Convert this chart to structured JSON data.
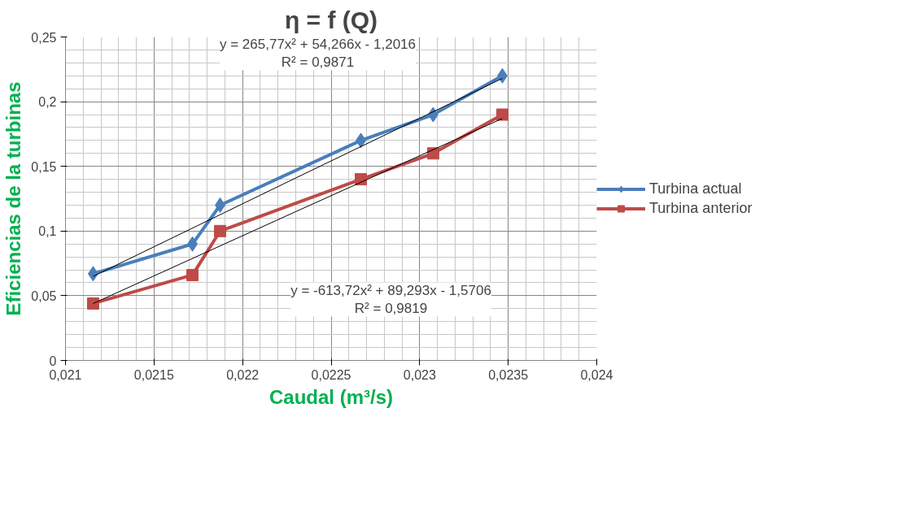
{
  "chart_data": {
    "type": "line",
    "title": "η = f (Q)",
    "xlabel": "Caudal (m³/s)",
    "ylabel": "Eficiencias de la turbinas",
    "x": [
      0.021156,
      0.021717,
      0.021873,
      0.022668,
      0.023076,
      0.023467
    ],
    "series": [
      {
        "name": "Turbina actual",
        "color": "#4a7ebb",
        "values": [
          0.067,
          0.09,
          0.12,
          0.17,
          0.19,
          0.22
        ],
        "marker": "diamond"
      },
      {
        "name": "Turbina anterior",
        "color": "#be4b48",
        "values": [
          0.044,
          0.066,
          0.1,
          0.14,
          0.16,
          0.19
        ],
        "marker": "square"
      },
      {
        "color": "#000000",
        "type": "line",
        "x": [
          0.021156,
          0.0223,
          0.023467
        ],
        "values": [
          0.065,
          0.141,
          0.218
        ],
        "marker": "none"
      },
      {
        "color": "#000000",
        "type": "line",
        "x": [
          0.021156,
          0.0223,
          0.023467
        ],
        "values": [
          0.044,
          0.115,
          0.187
        ],
        "marker": "none"
      }
    ],
    "xlim": [
      0.021,
      0.024
    ],
    "ylim": [
      0,
      0.25
    ],
    "xticks": [
      {
        "value": 0.021,
        "label": "0,021"
      },
      {
        "value": 0.0215,
        "label": "0,0215"
      },
      {
        "value": 0.022,
        "label": "0,022"
      },
      {
        "value": 0.0225,
        "label": "0,0225"
      },
      {
        "value": 0.023,
        "label": "0,023"
      },
      {
        "value": 0.0235,
        "label": "0,0235"
      },
      {
        "value": 0.024,
        "label": "0,024"
      }
    ],
    "yticks": [
      0,
      {
        "value": 0.05,
        "label": "0,05"
      },
      {
        "value": 0.1,
        "label": "0,1"
      },
      {
        "value": 0.15,
        "label": "0,15"
      },
      {
        "value": 0.2,
        "label": "0,2"
      },
      {
        "value": 0.25,
        "label": "0,25"
      }
    ],
    "annotations": [
      "y = 265,77x² + 54,266x - 1,2016\nR² = 0,9871",
      "y = -613,72x² + 89,293x - 1,5706\nR² = 0,9819"
    ],
    "grid": true,
    "legend": "right",
    "line_style": "solid"
  }
}
